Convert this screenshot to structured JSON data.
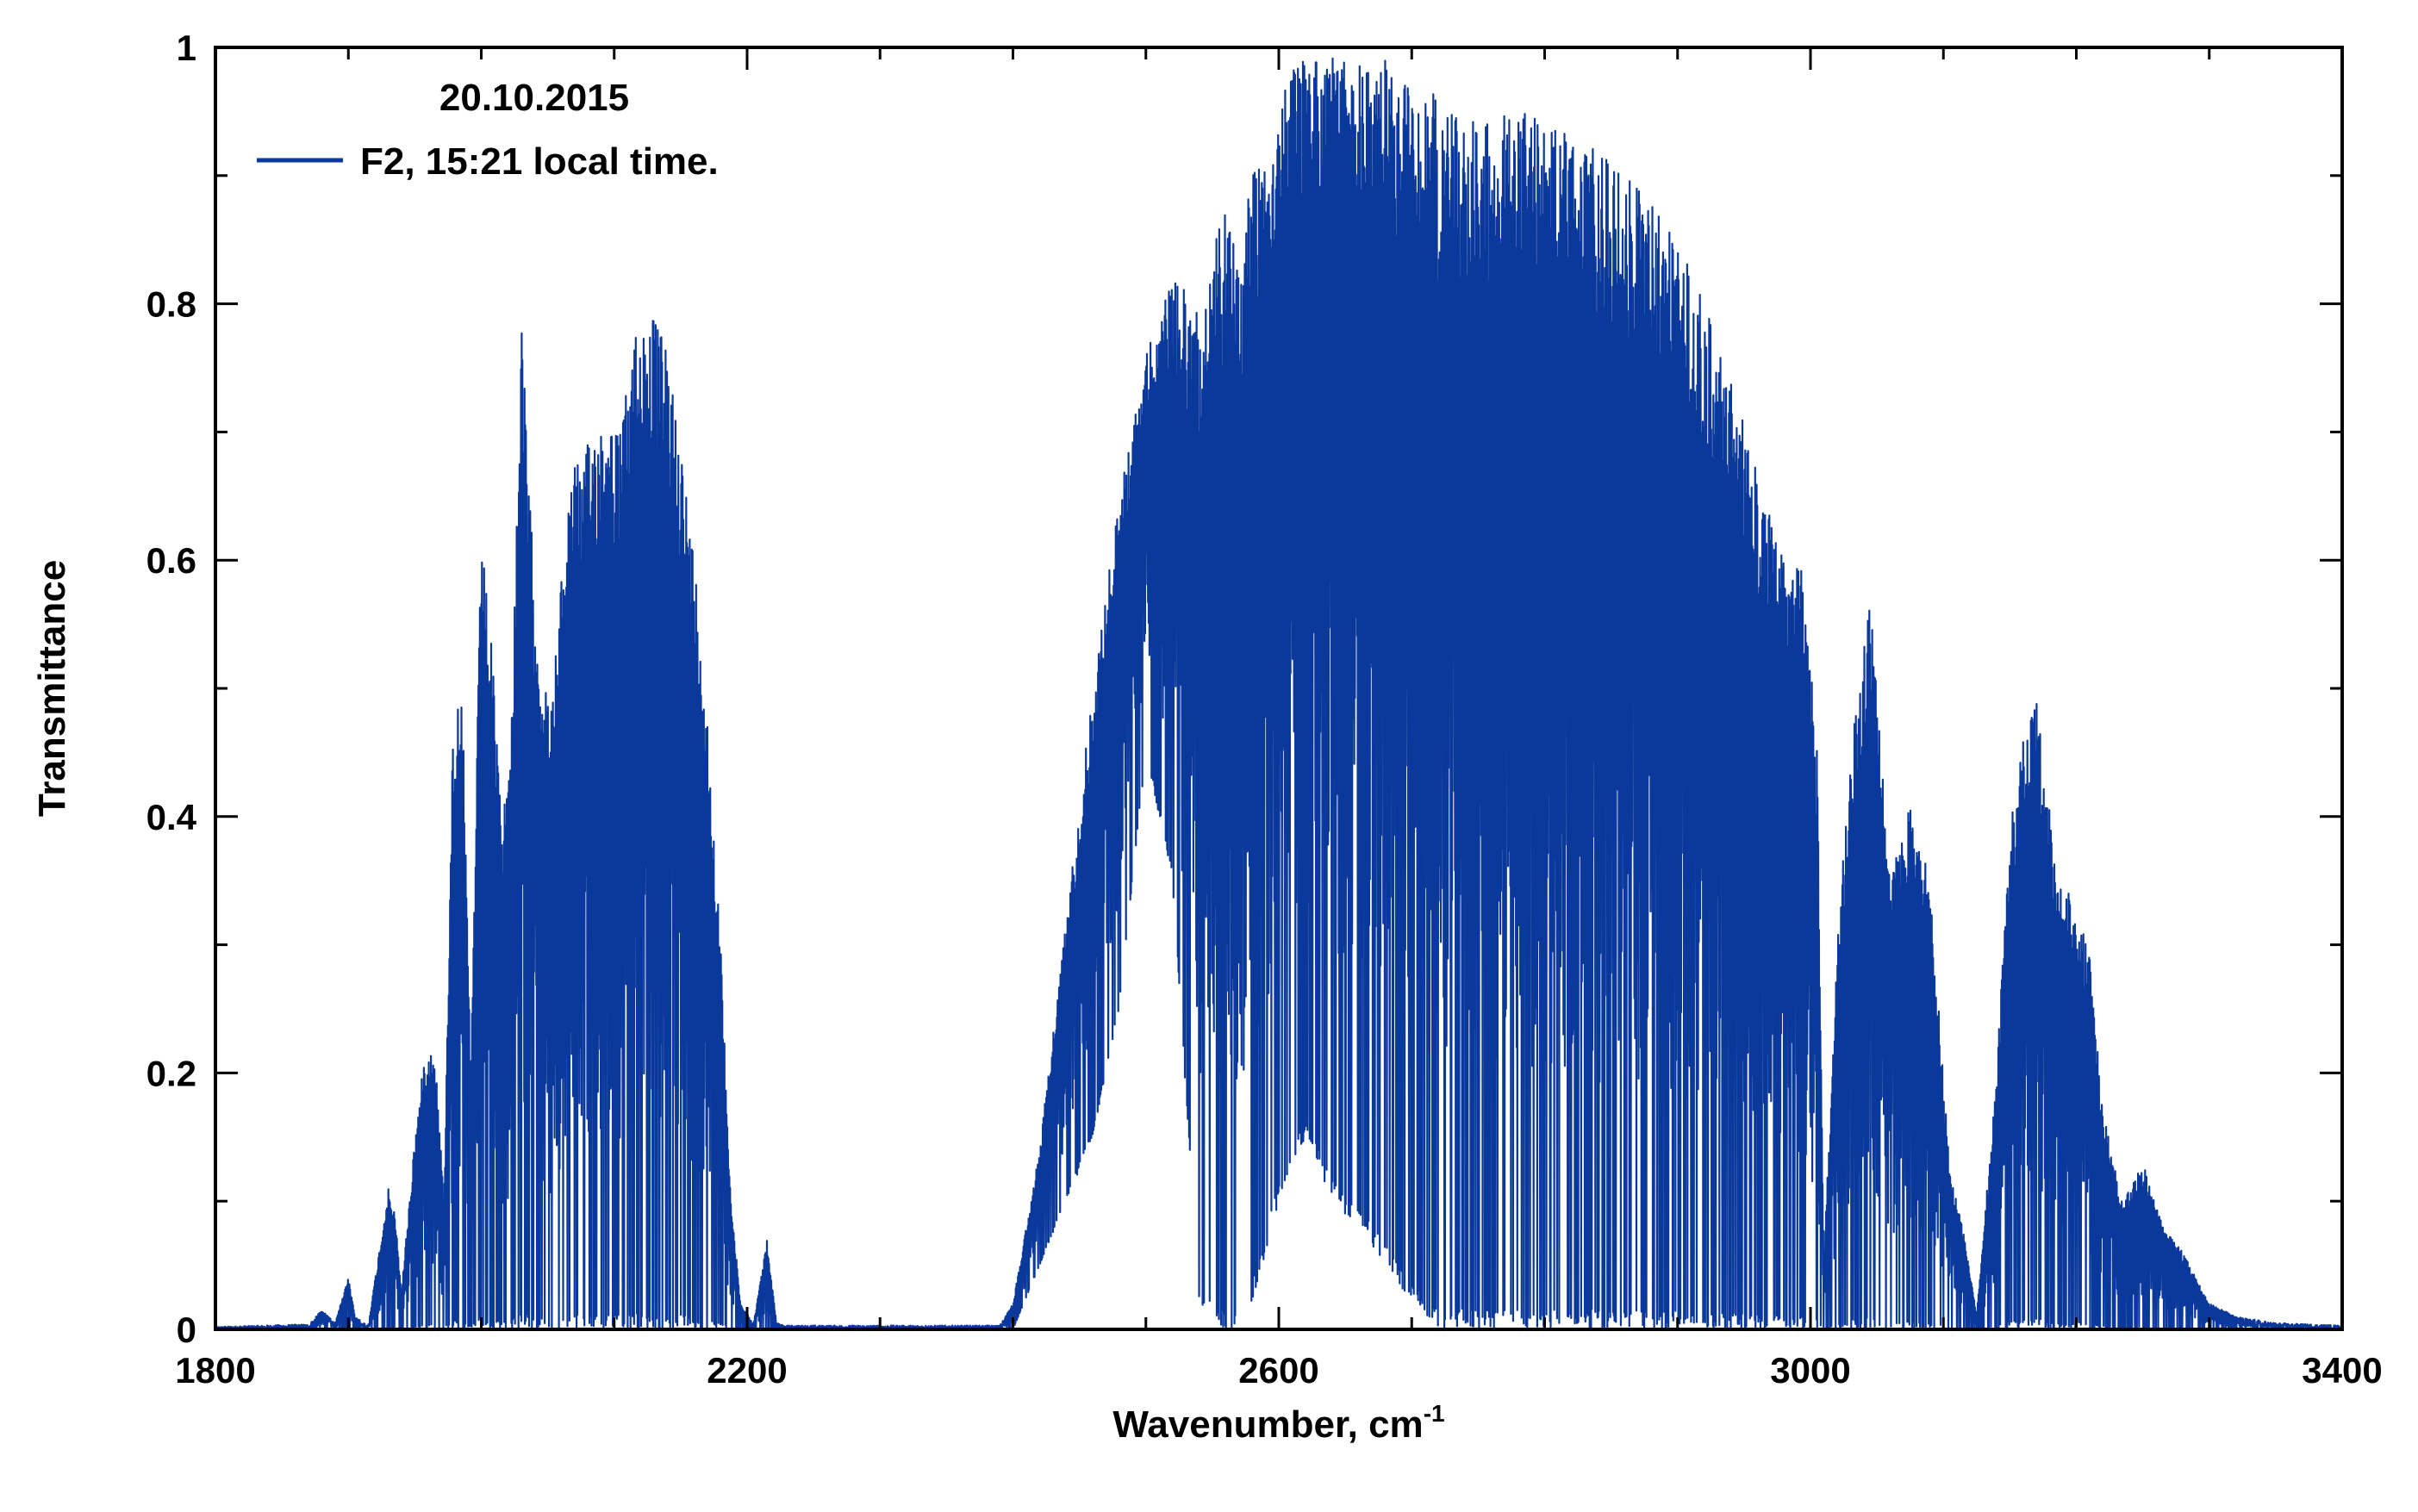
{
  "chart_data": {
    "type": "line",
    "title": "",
    "xlabel": "Wavenumber, cm",
    "xlabel_superscript": "-1",
    "ylabel": "Transmittance",
    "xlim": [
      1800,
      3400
    ],
    "ylim": [
      0,
      1
    ],
    "x_ticks": [
      1800,
      2200,
      2600,
      3000,
      3400
    ],
    "x_tick_labels": [
      "1800",
      "2200",
      "2600",
      "3000",
      "3400"
    ],
    "y_ticks": [
      0,
      0.2,
      0.4,
      0.6,
      0.8,
      1
    ],
    "y_tick_labels": [
      "0",
      "0.2",
      "0.4",
      "0.6",
      "0.8",
      "1"
    ],
    "grid": false,
    "legend": {
      "placement": "top-left",
      "header": "20.10.2015",
      "entries": [
        "F2, 15:21 local time."
      ]
    },
    "series": [
      {
        "name": "F2, 15:21 local time.",
        "color": "#0a389b",
        "envelope": {
          "x": [
            1800,
            1870,
            1880,
            1890,
            1900,
            1905,
            1915,
            1930,
            1935,
            1940,
            1950,
            1958,
            1965,
            1972,
            1978,
            1985,
            1992,
            2000,
            2008,
            2015,
            2022,
            2030,
            2038,
            2045,
            2052,
            2060,
            2068,
            2075,
            2085,
            2095,
            2105,
            2115,
            2125,
            2135,
            2145,
            2155,
            2165,
            2172,
            2180,
            2188,
            2195,
            2205,
            2215,
            2222,
            2228,
            2240,
            2390,
            2400,
            2420,
            2440,
            2460,
            2480,
            2500,
            2520,
            2540,
            2560,
            2570,
            2580,
            2600,
            2620,
            2640,
            2660,
            2680,
            2700,
            2720,
            2740,
            2760,
            2780,
            2800,
            2820,
            2840,
            2860,
            2880,
            2900,
            2920,
            2940,
            2960,
            2980,
            2995,
            3005,
            3010,
            3020,
            3030,
            3045,
            3060,
            3075,
            3090,
            3105,
            3115,
            3125,
            3140,
            3150,
            3160,
            3170,
            3185,
            3200,
            3210,
            3220,
            3235,
            3250,
            3265,
            3280,
            3300,
            3320,
            3350,
            3400
          ],
          "upper": [
            0.002,
            0.004,
            0.015,
            0.005,
            0.04,
            0.01,
            0.003,
            0.11,
            0.09,
            0.03,
            0.15,
            0.22,
            0.22,
            0.1,
            0.45,
            0.53,
            0.2,
            0.62,
            0.53,
            0.4,
            0.45,
            0.79,
            0.62,
            0.52,
            0.48,
            0.58,
            0.69,
            0.67,
            0.71,
            0.72,
            0.7,
            0.78,
            0.8,
            0.78,
            0.74,
            0.65,
            0.56,
            0.45,
            0.3,
            0.1,
            0.02,
            0.005,
            0.07,
            0.005,
            0.003,
            0.003,
            0.003,
            0.02,
            0.14,
            0.32,
            0.5,
            0.65,
            0.76,
            0.82,
            0.8,
            0.88,
            0.83,
            0.92,
            0.96,
            1.0,
            1.0,
            0.99,
            0.99,
            0.98,
            0.96,
            0.95,
            0.95,
            0.95,
            0.95,
            0.93,
            0.92,
            0.9,
            0.88,
            0.85,
            0.8,
            0.74,
            0.67,
            0.6,
            0.6,
            0.45,
            0.05,
            0.3,
            0.45,
            0.57,
            0.35,
            0.41,
            0.35,
            0.12,
            0.08,
            0.01,
            0.2,
            0.39,
            0.46,
            0.49,
            0.36,
            0.33,
            0.29,
            0.17,
            0.1,
            0.13,
            0.08,
            0.06,
            0.02,
            0.01,
            0.005,
            0.003
          ],
          "lower": [
            0,
            0,
            0,
            0,
            0,
            0,
            0,
            0,
            0,
            0,
            0,
            0,
            0,
            0,
            0,
            0,
            0,
            0,
            0,
            0,
            0,
            0,
            0,
            0,
            0,
            0,
            0,
            0,
            0,
            0,
            0,
            0,
            0,
            0,
            0,
            0,
            0,
            0,
            0,
            0,
            0,
            0,
            0,
            0,
            0,
            0,
            0,
            0,
            0.05,
            0.1,
            0.15,
            0.25,
            0.45,
            0.35,
            0.02,
            0.0,
            0.0,
            0.02,
            0.1,
            0.15,
            0.1,
            0.08,
            0.05,
            0.02,
            0.0,
            0.0,
            0.0,
            0.0,
            0.0,
            0.0,
            0.0,
            0.0,
            0.0,
            0.0,
            0.0,
            0.0,
            0.0,
            0.0,
            0.0,
            0.0,
            0.0,
            0.0,
            0.0,
            0.0,
            0.0,
            0.0,
            0.0,
            0.0,
            0.0,
            0.0,
            0.0,
            0.0,
            0.0,
            0.0,
            0.0,
            0.0,
            0.0,
            0.0,
            0.0,
            0.0,
            0.0,
            0.0,
            0.0,
            0.0,
            0.0,
            0.0
          ]
        }
      }
    ]
  }
}
